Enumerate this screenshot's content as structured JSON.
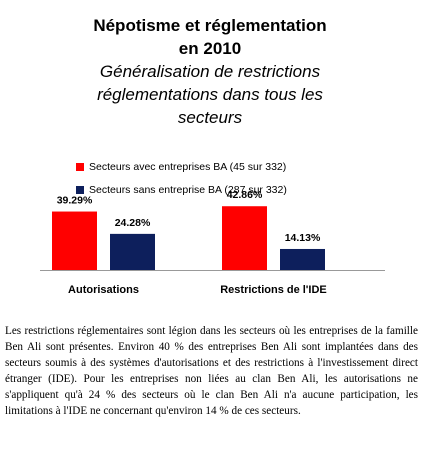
{
  "title_line1": "Népotisme et réglementation",
  "title_line2": "en 2010",
  "subtitle_line1": "Généralisation de restrictions",
  "subtitle_line2": "réglementations dans tous les",
  "subtitle_line3": "secteurs",
  "chart_data": {
    "type": "bar",
    "categories": [
      "Autorisations",
      "Restrictions de l'IDE"
    ],
    "series": [
      {
        "name": "Secteurs avec entreprises BA (45 sur 332)",
        "values": [
          39.29,
          42.86
        ],
        "labels": [
          "39.29%",
          "42.86%"
        ],
        "color": "#ff0000"
      },
      {
        "name": "Secteurs sans entreprise BA (287 sur 332)",
        "values": [
          24.28,
          14.13
        ],
        "labels": [
          "24.28%",
          "14.13%"
        ],
        "color": "#0d1f5c"
      }
    ],
    "ylim": [
      0,
      50
    ],
    "grid": false,
    "legend": "top-left"
  },
  "caption": "Les restrictions réglementaires sont légion dans les secteurs où les entreprises de la famille Ben Ali sont présentes. Environ 40 % des entreprises Ben Ali sont implantées dans des secteurs soumis à des systèmes d'autorisations et des restrictions à l'investissement direct étranger (IDE). Pour les entreprises non liées au clan Ben Ali, les autorisations ne s'appliquent qu'à 24 % des secteurs où le clan Ben Ali n'a aucune participation, les limitations à l'IDE ne concernant qu'environ 14 % de ces secteurs."
}
